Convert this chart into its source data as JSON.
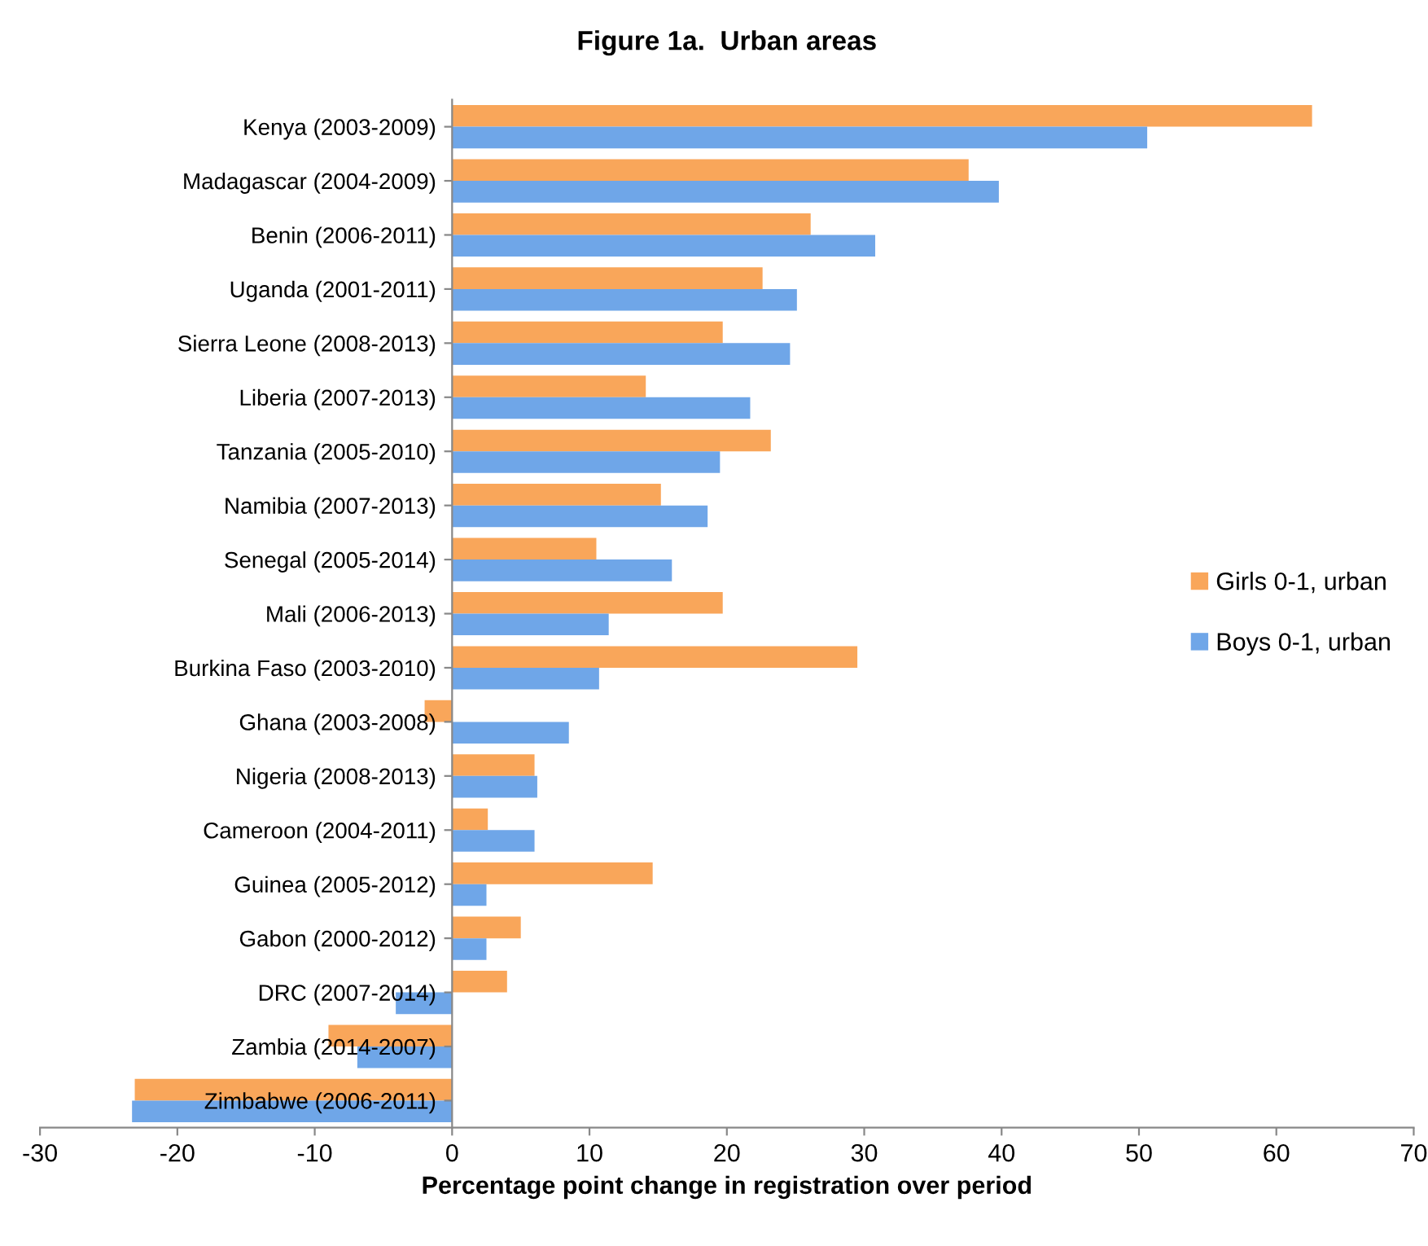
{
  "chart_data": {
    "type": "bar",
    "orientation": "horizontal",
    "title": "Figure 1a.  Urban areas",
    "xlabel": "Percentage point change in registration over period",
    "categories": [
      "Kenya (2003-2009)",
      "Madagascar (2004-2009)",
      "Benin (2006-2011)",
      "Uganda (2001-2011)",
      "Sierra Leone (2008-2013)",
      "Liberia (2007-2013)",
      "Tanzania (2005-2010)",
      "Namibia (2007-2013)",
      "Senegal (2005-2014)",
      "Mali (2006-2013)",
      "Burkina Faso (2003-2010)",
      "Ghana (2003-2008)",
      "Nigeria (2008-2013)",
      "Cameroon (2004-2011)",
      "Guinea (2005-2012)",
      "Gabon (2000-2012)",
      "DRC (2007-2014)",
      "Zambia (2014-2007)",
      "Zimbabwe (2006-2011)"
    ],
    "series": [
      {
        "name": "Girls 0-1, urban",
        "color": "#f9a65a",
        "values": [
          62.6,
          37.6,
          26.1,
          22.6,
          19.7,
          14.1,
          23.2,
          15.2,
          10.5,
          19.7,
          29.5,
          -2.0,
          6.0,
          2.6,
          14.6,
          5.0,
          4.0,
          -9.0,
          -23.1
        ]
      },
      {
        "name": "Boys 0-1, urban",
        "color": "#6fa6e8",
        "values": [
          50.6,
          39.8,
          30.8,
          25.1,
          24.6,
          21.7,
          19.5,
          18.6,
          16.0,
          11.4,
          10.7,
          8.5,
          6.2,
          6.0,
          2.5,
          2.5,
          -4.1,
          -6.9,
          -23.3
        ]
      }
    ],
    "xlim": [
      -30,
      70
    ],
    "xticks": [
      -30,
      -20,
      -10,
      0,
      10,
      20,
      30,
      40,
      50,
      60,
      70
    ],
    "grid": false,
    "legend": "right"
  }
}
